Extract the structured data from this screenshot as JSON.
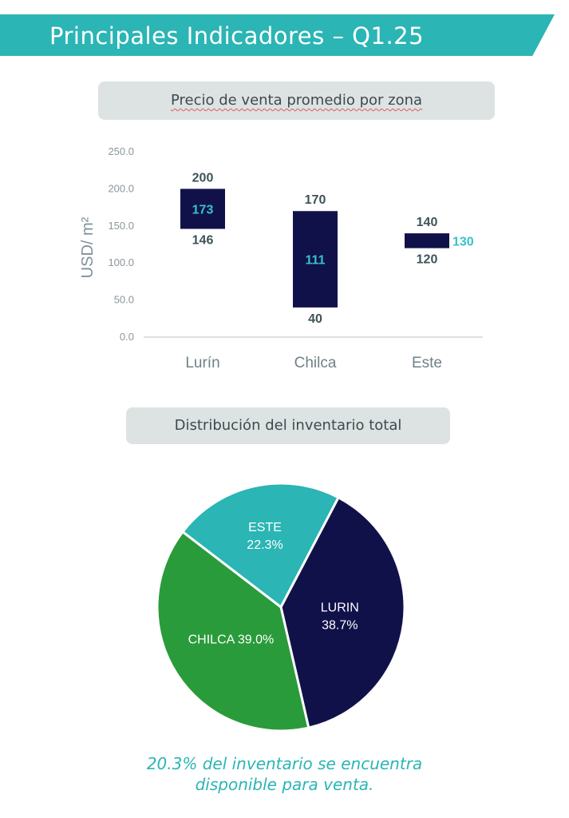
{
  "header": {
    "title": "Principales Indicadores – Q1.25"
  },
  "chart1": {
    "title": "Precio de venta promedio por zona"
  },
  "chart2": {
    "title": "Distribución del inventario total"
  },
  "footnote": {
    "line1": "20.3% del inventario se encuentra",
    "line2": "disponible para venta."
  },
  "colors": {
    "banner": "#2bb5b4",
    "bar": "#11114a",
    "avg_label": "#36c2c8",
    "minmax_label": "#3e5358",
    "pie_este": "#2bb5b4",
    "pie_lurin": "#11114a",
    "pie_chilca": "#2a9b3a"
  },
  "chart_data": [
    {
      "type": "bar",
      "title": "Precio de venta promedio por zona",
      "ylabel": "USD/ m²",
      "ylim": [
        0,
        250
      ],
      "yticks": [
        "0.0",
        "50.0",
        "100.0",
        "150.0",
        "200.0",
        "250.0"
      ],
      "categories": [
        "Lurín",
        "Chilca",
        "Este"
      ],
      "max": [
        200,
        170,
        140
      ],
      "min": [
        146,
        40,
        120
      ],
      "avg": [
        173,
        111,
        130
      ]
    },
    {
      "type": "pie",
      "title": "Distribución del inventario total",
      "slices": [
        {
          "label": "ESTE",
          "value": 22.3,
          "value_label": "22.3%"
        },
        {
          "label": "LURIN",
          "value": 38.7,
          "value_label": "38.7%"
        },
        {
          "label": "CHILCA",
          "value": 39.0,
          "value_label": "39.0%"
        }
      ]
    }
  ]
}
